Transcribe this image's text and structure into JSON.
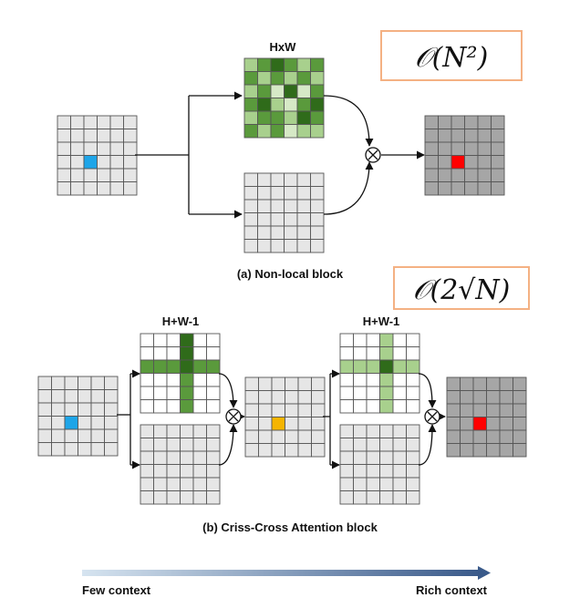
{
  "top_block": {
    "map_label": "HxW",
    "complexity": "𝒪(N²)",
    "caption": "(a) Non-local block"
  },
  "bottom_block": {
    "map_label_1": "H+W-1",
    "map_label_2": "H+W-1",
    "complexity": "𝒪(2√N)",
    "caption": "(b) Criss-Cross Attention block"
  },
  "context_arrow": {
    "left_label": "Few context",
    "right_label": "Rich context"
  },
  "colors": {
    "cell_light": "#e6e6e6",
    "cell_dark": "#a6a6a6",
    "query_blue": "#1ea5e8",
    "output_red": "#ff0000",
    "mid_orange": "#f5b400",
    "green_dark": "#2f6b1a",
    "green_mid": "#5a9a3c",
    "green_light": "#a8d08d",
    "green_pale": "#d6e9c6",
    "complexity_border": "#f4b183",
    "arrow_gradient_start": "#d6e4f0",
    "arrow_gradient_end": "#3a5a8a"
  },
  "icons": {
    "multiply": "circled-times-icon"
  }
}
